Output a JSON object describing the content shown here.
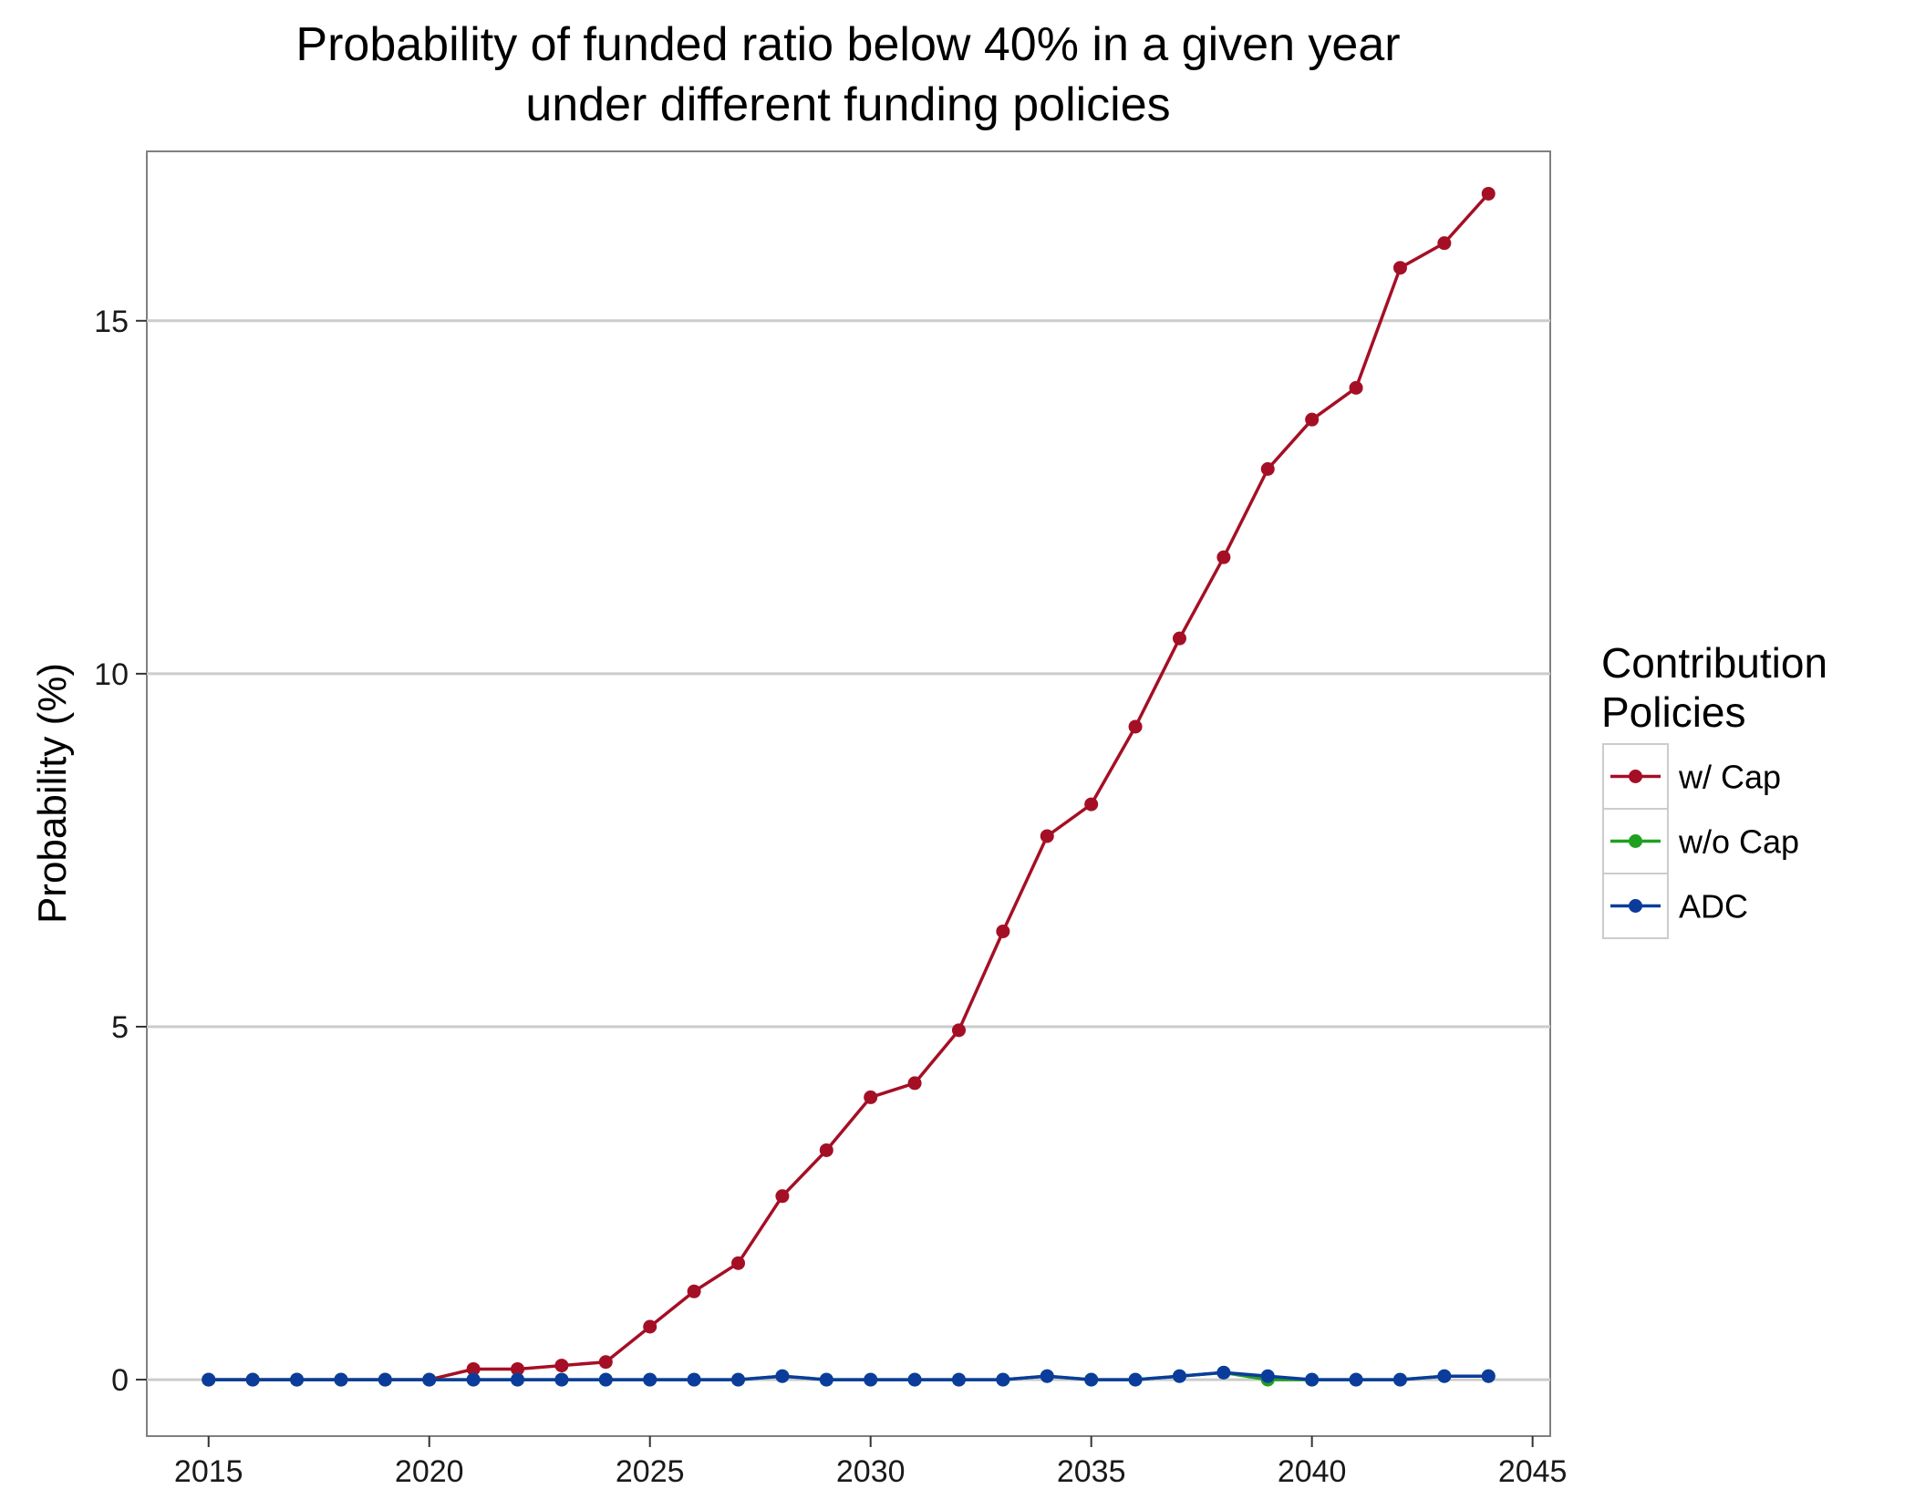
{
  "chart_data": {
    "type": "line",
    "title_line1": "Probability of funded ratio below 40% in a given year",
    "title_line2": "under different funding policies",
    "xlabel": "",
    "ylabel": "Probability (%)",
    "xlim": [
      2013.6,
      2045.4
    ],
    "ylim": [
      -0.8,
      17.4
    ],
    "xticks": [
      2015,
      2020,
      2025,
      2030,
      2035,
      2040,
      2045
    ],
    "yticks": [
      0,
      5,
      10,
      15
    ],
    "grid": "horizontal major",
    "legend": {
      "title_line1": "Contribution",
      "title_line2": "Policies",
      "placement": "right"
    },
    "x": [
      2015,
      2016,
      2017,
      2018,
      2019,
      2020,
      2021,
      2022,
      2023,
      2024,
      2025,
      2026,
      2027,
      2028,
      2029,
      2030,
      2031,
      2032,
      2033,
      2034,
      2035,
      2036,
      2037,
      2038,
      2039,
      2040,
      2041,
      2042,
      2043,
      2044
    ],
    "series": [
      {
        "name": "w/ Cap",
        "color": "#a50f25",
        "values": [
          0,
          0,
          0,
          0,
          0,
          0,
          0.15,
          0.15,
          0.2,
          0.25,
          0.75,
          1.25,
          1.65,
          2.6,
          3.25,
          4.0,
          4.2,
          4.95,
          6.35,
          7.7,
          8.15,
          9.25,
          10.5,
          11.65,
          12.9,
          13.6,
          14.05,
          15.75,
          16.1,
          16.8
        ]
      },
      {
        "name": "w/o Cap",
        "color": "#1fa01f",
        "values": [
          0,
          0,
          0,
          0,
          0,
          0,
          0,
          0,
          0,
          0,
          0,
          0,
          0,
          0.05,
          0,
          0,
          0,
          0,
          0,
          0.05,
          0,
          0,
          0.05,
          0.1,
          0,
          0,
          0,
          0,
          0.05,
          0.05
        ]
      },
      {
        "name": "ADC",
        "color": "#0b3c9c",
        "values": [
          0,
          0,
          0,
          0,
          0,
          0,
          0,
          0,
          0,
          0,
          0,
          0,
          0,
          0.05,
          0,
          0,
          0,
          0,
          0,
          0.05,
          0,
          0,
          0.05,
          0.1,
          0.05,
          0,
          0,
          0,
          0.05,
          0.05
        ]
      }
    ]
  }
}
